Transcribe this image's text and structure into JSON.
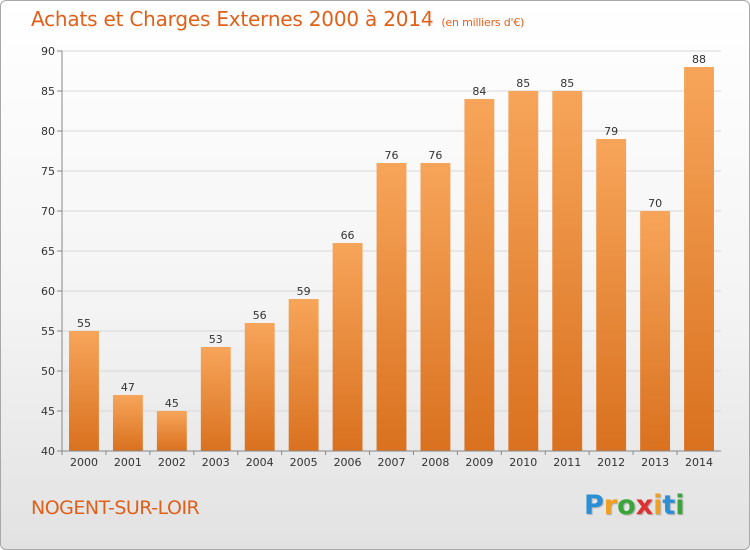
{
  "header": {
    "title": "Achats et Charges Externes 2000 à 2014",
    "subtitle": "(en milliers d'€)"
  },
  "footer": {
    "place": "NOGENT-SUR-LOIR",
    "logo_letters": [
      "P",
      "r",
      "o",
      "x",
      "i",
      "t",
      "i"
    ],
    "logo_colors": [
      "#2a8fd6",
      "#f0a020",
      "#3aa63a",
      "#e03030",
      "#f0a020",
      "#2a8fd6",
      "#3aa63a"
    ]
  },
  "colors": {
    "bar_light": "#f7a55a",
    "bar_dark": "#d9711f",
    "grid": "#d8d8d8",
    "axis": "#888888",
    "accent": "#e0601a"
  },
  "chart_data": {
    "type": "bar",
    "title": "Achats et Charges Externes 2000 à 2014",
    "subtitle": "(en milliers d'€)",
    "categories": [
      "2000",
      "2001",
      "2002",
      "2003",
      "2004",
      "2005",
      "2006",
      "2007",
      "2008",
      "2009",
      "2010",
      "2011",
      "2012",
      "2013",
      "2014"
    ],
    "values": [
      55,
      47,
      45,
      53,
      56,
      59,
      66,
      76,
      76,
      84,
      85,
      85,
      79,
      70,
      88
    ],
    "ylim": [
      40,
      90
    ],
    "yticks": [
      40,
      45,
      50,
      55,
      60,
      65,
      70,
      75,
      80,
      85,
      90
    ],
    "xlabel": "",
    "ylabel": "",
    "grid": true,
    "legend": "none"
  }
}
